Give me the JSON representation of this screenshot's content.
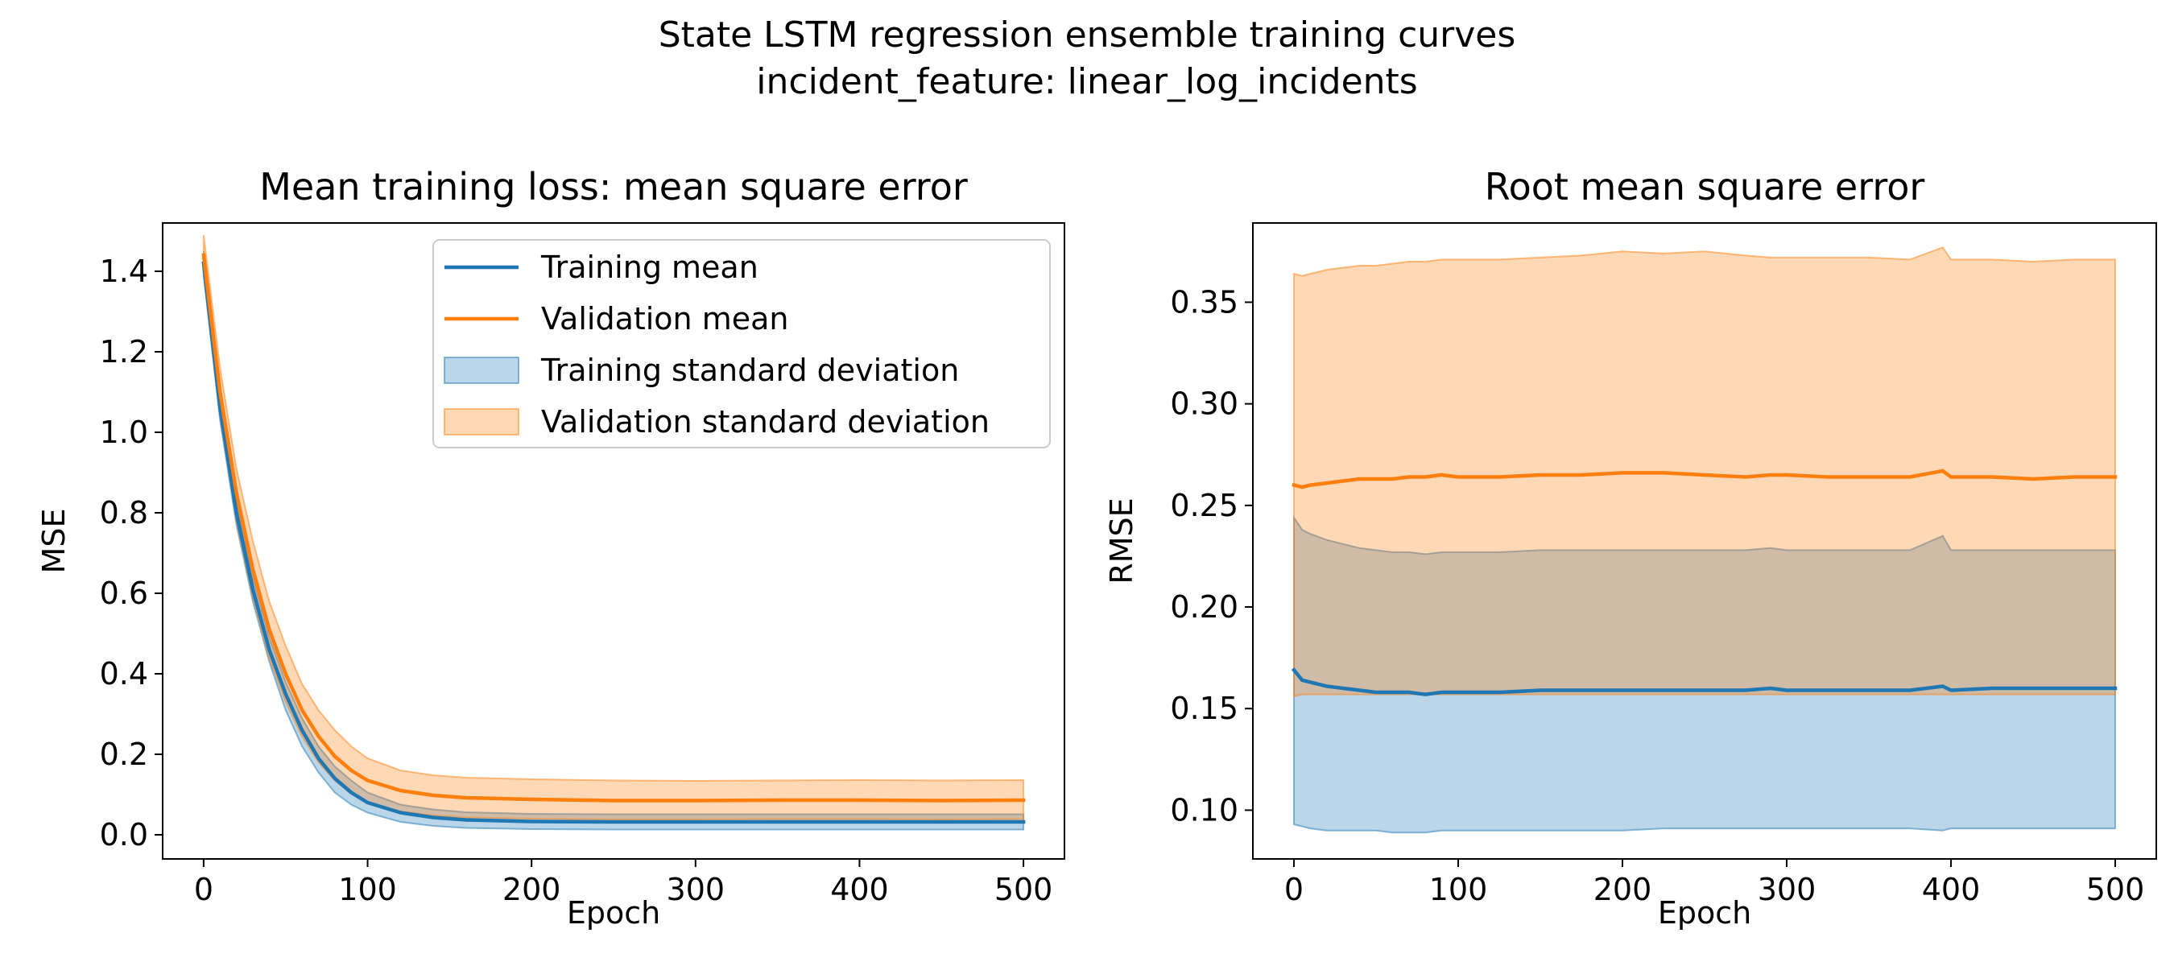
{
  "figure": {
    "title_line1": "State LSTM regression ensemble training curves",
    "title_line2": "incident_feature: linear_log_incidents"
  },
  "colors": {
    "training": "#1f77b4",
    "validation": "#ff7f0e",
    "training_fill": "#1f77b4",
    "validation_fill": "#ff7f0e"
  },
  "chart_data": [
    {
      "type": "line",
      "title": "Mean training loss: mean square error",
      "xlabel": "Epoch",
      "ylabel": "MSE",
      "xlim": [
        -25,
        525
      ],
      "ylim": [
        -0.06,
        1.52
      ],
      "xticks": [
        0,
        100,
        200,
        300,
        400,
        500
      ],
      "xtick_labels": [
        "0",
        "100",
        "200",
        "300",
        "400",
        "500"
      ],
      "yticks": [
        0.0,
        0.2,
        0.4,
        0.6,
        0.8,
        1.0,
        1.2,
        1.4
      ],
      "ytick_labels": [
        "0.0",
        "0.2",
        "0.4",
        "0.6",
        "0.8",
        "1.0",
        "1.2",
        "1.4"
      ],
      "legend": {
        "position": "upper right",
        "entries": [
          "Training mean",
          "Validation mean",
          "Training standard deviation",
          "Validation standard deviation"
        ]
      },
      "series": [
        {
          "name": "Training mean",
          "x": [
            0,
            10,
            20,
            30,
            40,
            50,
            60,
            70,
            80,
            90,
            100,
            120,
            140,
            160,
            200,
            250,
            300,
            350,
            400,
            450,
            500
          ],
          "values": [
            1.42,
            1.06,
            0.8,
            0.61,
            0.46,
            0.35,
            0.26,
            0.19,
            0.14,
            0.105,
            0.08,
            0.055,
            0.043,
            0.037,
            0.033,
            0.032,
            0.032,
            0.032,
            0.032,
            0.032,
            0.032
          ],
          "std_lower": [
            1.39,
            1.03,
            0.77,
            0.58,
            0.43,
            0.31,
            0.22,
            0.155,
            0.105,
            0.075,
            0.055,
            0.032,
            0.022,
            0.017,
            0.014,
            0.013,
            0.013,
            0.013,
            0.013,
            0.013,
            0.013
          ],
          "std_upper": [
            1.45,
            1.09,
            0.83,
            0.64,
            0.49,
            0.38,
            0.29,
            0.22,
            0.17,
            0.135,
            0.105,
            0.075,
            0.063,
            0.056,
            0.052,
            0.051,
            0.051,
            0.051,
            0.051,
            0.051,
            0.051
          ]
        },
        {
          "name": "Validation mean",
          "x": [
            0,
            10,
            20,
            30,
            40,
            50,
            60,
            70,
            80,
            90,
            100,
            120,
            140,
            160,
            200,
            250,
            300,
            350,
            400,
            450,
            500
          ],
          "values": [
            1.44,
            1.1,
            0.85,
            0.66,
            0.51,
            0.4,
            0.31,
            0.245,
            0.195,
            0.16,
            0.135,
            0.11,
            0.098,
            0.092,
            0.088,
            0.085,
            0.085,
            0.086,
            0.086,
            0.085,
            0.086
          ],
          "std_lower": [
            1.39,
            1.04,
            0.78,
            0.59,
            0.44,
            0.33,
            0.245,
            0.18,
            0.135,
            0.102,
            0.08,
            0.058,
            0.048,
            0.043,
            0.04,
            0.038,
            0.038,
            0.039,
            0.039,
            0.038,
            0.039
          ],
          "std_upper": [
            1.49,
            1.16,
            0.91,
            0.73,
            0.58,
            0.47,
            0.375,
            0.31,
            0.26,
            0.22,
            0.19,
            0.16,
            0.148,
            0.142,
            0.138,
            0.135,
            0.134,
            0.135,
            0.136,
            0.135,
            0.136
          ]
        }
      ]
    },
    {
      "type": "line",
      "title": "Root mean square error",
      "xlabel": "Epoch",
      "ylabel": "RMSE",
      "xlim": [
        -25,
        525
      ],
      "ylim": [
        0.076,
        0.389
      ],
      "xticks": [
        0,
        100,
        200,
        300,
        400,
        500
      ],
      "xtick_labels": [
        "0",
        "100",
        "200",
        "300",
        "400",
        "500"
      ],
      "yticks": [
        0.1,
        0.15,
        0.2,
        0.25,
        0.3,
        0.35
      ],
      "ytick_labels": [
        "0.10",
        "0.15",
        "0.20",
        "0.25",
        "0.30",
        "0.35"
      ],
      "series": [
        {
          "name": "Training mean",
          "x": [
            0,
            5,
            10,
            20,
            30,
            40,
            50,
            60,
            70,
            80,
            90,
            100,
            125,
            150,
            175,
            200,
            225,
            250,
            275,
            290,
            300,
            325,
            350,
            375,
            395,
            400,
            425,
            450,
            475,
            500
          ],
          "values": [
            0.169,
            0.164,
            0.163,
            0.161,
            0.16,
            0.159,
            0.158,
            0.158,
            0.158,
            0.157,
            0.158,
            0.158,
            0.158,
            0.159,
            0.159,
            0.159,
            0.159,
            0.159,
            0.159,
            0.16,
            0.159,
            0.159,
            0.159,
            0.159,
            0.161,
            0.159,
            0.16,
            0.16,
            0.16,
            0.16
          ],
          "std_lower": [
            0.093,
            0.092,
            0.091,
            0.09,
            0.09,
            0.09,
            0.09,
            0.089,
            0.089,
            0.089,
            0.09,
            0.09,
            0.09,
            0.09,
            0.09,
            0.09,
            0.091,
            0.091,
            0.091,
            0.091,
            0.091,
            0.091,
            0.091,
            0.091,
            0.09,
            0.091,
            0.091,
            0.091,
            0.091,
            0.091
          ],
          "std_upper": [
            0.244,
            0.238,
            0.236,
            0.233,
            0.231,
            0.229,
            0.228,
            0.227,
            0.227,
            0.226,
            0.227,
            0.227,
            0.227,
            0.228,
            0.228,
            0.228,
            0.228,
            0.228,
            0.228,
            0.229,
            0.228,
            0.228,
            0.228,
            0.228,
            0.235,
            0.228,
            0.228,
            0.228,
            0.228,
            0.228
          ]
        },
        {
          "name": "Validation mean",
          "x": [
            0,
            5,
            10,
            20,
            30,
            40,
            50,
            60,
            70,
            80,
            90,
            100,
            125,
            150,
            175,
            200,
            225,
            250,
            275,
            290,
            300,
            325,
            350,
            375,
            395,
            400,
            425,
            450,
            475,
            500
          ],
          "values": [
            0.26,
            0.259,
            0.26,
            0.261,
            0.262,
            0.263,
            0.263,
            0.263,
            0.264,
            0.264,
            0.265,
            0.264,
            0.264,
            0.265,
            0.265,
            0.266,
            0.266,
            0.265,
            0.264,
            0.265,
            0.265,
            0.264,
            0.264,
            0.264,
            0.267,
            0.264,
            0.264,
            0.263,
            0.264,
            0.264
          ],
          "std_lower": [
            0.156,
            0.157,
            0.157,
            0.157,
            0.157,
            0.157,
            0.157,
            0.157,
            0.157,
            0.157,
            0.157,
            0.157,
            0.157,
            0.157,
            0.157,
            0.157,
            0.157,
            0.157,
            0.157,
            0.157,
            0.157,
            0.157,
            0.157,
            0.157,
            0.157,
            0.157,
            0.157,
            0.157,
            0.157,
            0.157
          ],
          "std_upper": [
            0.364,
            0.363,
            0.364,
            0.366,
            0.367,
            0.368,
            0.368,
            0.369,
            0.37,
            0.37,
            0.371,
            0.371,
            0.371,
            0.372,
            0.373,
            0.375,
            0.374,
            0.375,
            0.373,
            0.372,
            0.372,
            0.372,
            0.372,
            0.371,
            0.377,
            0.371,
            0.371,
            0.37,
            0.371,
            0.371
          ]
        }
      ]
    }
  ]
}
